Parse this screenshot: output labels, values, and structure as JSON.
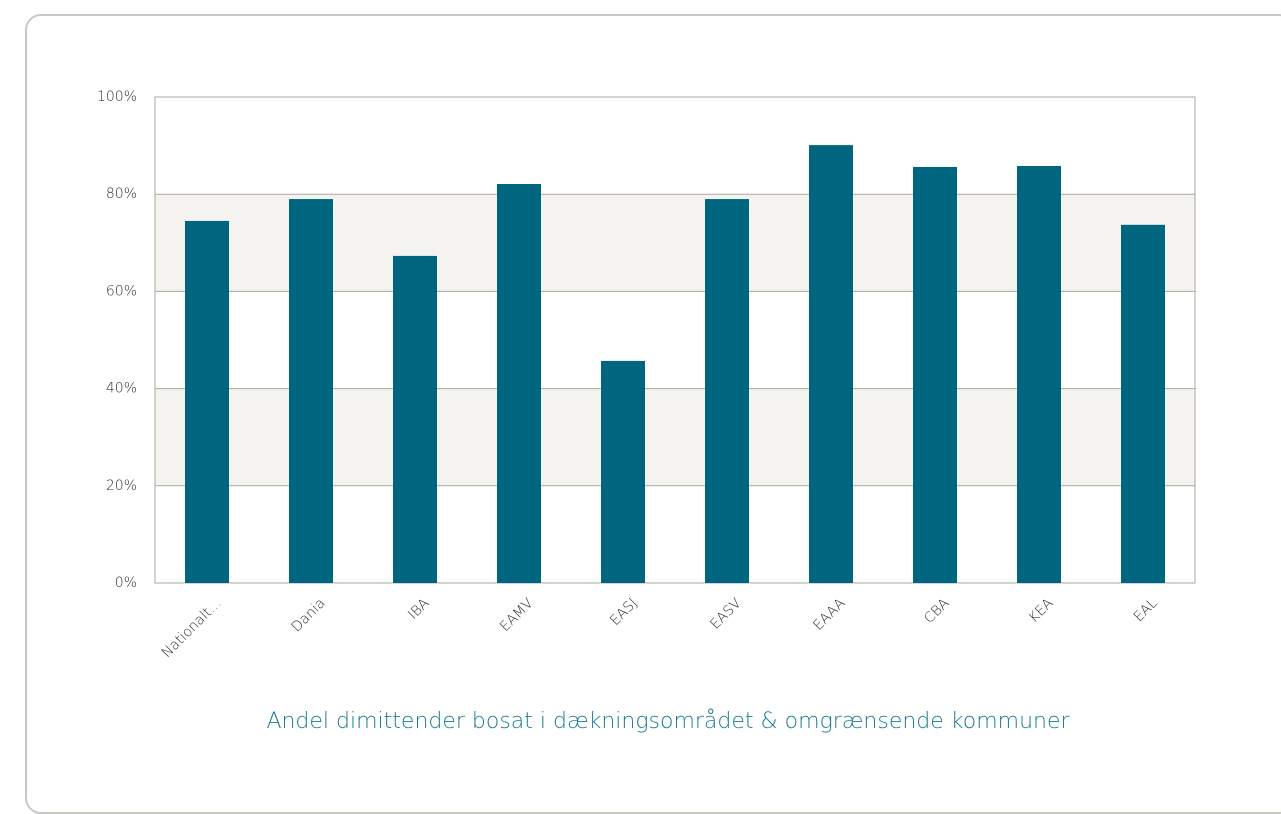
{
  "chart_data": {
    "type": "bar",
    "title": "Andel dimittender bosat i dækningsområdet & omgrænsende kommuner",
    "categories": [
      "Nationalt...",
      "Dania",
      "IBA",
      "EAMV",
      "EASJ",
      "EASV",
      "EAAA",
      "CBA",
      "KEA",
      "EAL"
    ],
    "values": [
      74.5,
      79.0,
      67.3,
      82.1,
      45.7,
      79.0,
      90.1,
      85.6,
      85.8,
      73.7
    ],
    "color": "#00657f",
    "ylim": [
      0,
      100
    ],
    "yticks": [
      {
        "value": 0,
        "label": "0%"
      },
      {
        "value": 20,
        "label": "20%"
      },
      {
        "value": 40,
        "label": "40%"
      },
      {
        "value": 60,
        "label": "60%"
      },
      {
        "value": 80,
        "label": "80%"
      },
      {
        "value": 100,
        "label": "100%"
      }
    ],
    "grid": true
  }
}
